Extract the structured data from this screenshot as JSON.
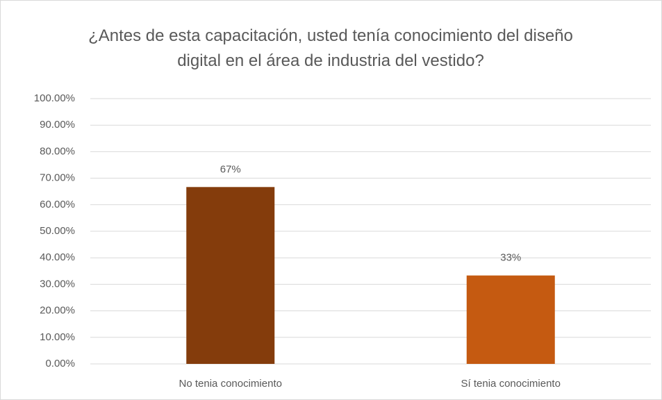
{
  "chart_data": {
    "type": "bar",
    "title": "¿Antes de esta capacitación, usted tenía conocimiento del diseño digital en el área de industria del vestido?",
    "categories": [
      "No tenia conocimiento",
      "Sí tenia conocimiento"
    ],
    "values": [
      66.67,
      33.33
    ],
    "value_labels": [
      "67%",
      "33%"
    ],
    "colors": [
      "#843c0c",
      "#c55a11"
    ],
    "ylim": [
      0,
      100
    ],
    "yticks": [
      {
        "value": 0,
        "label": "0.00%"
      },
      {
        "value": 10,
        "label": "10.00%"
      },
      {
        "value": 20,
        "label": "20.00%"
      },
      {
        "value": 30,
        "label": "30.00%"
      },
      {
        "value": 40,
        "label": "40.00%"
      },
      {
        "value": 50,
        "label": "50.00%"
      },
      {
        "value": 60,
        "label": "60.00%"
      },
      {
        "value": 70,
        "label": "70.00%"
      },
      {
        "value": 80,
        "label": "80.00%"
      },
      {
        "value": 90,
        "label": "90.00%"
      },
      {
        "value": 100,
        "label": "100.00%"
      }
    ],
    "grid": true
  }
}
